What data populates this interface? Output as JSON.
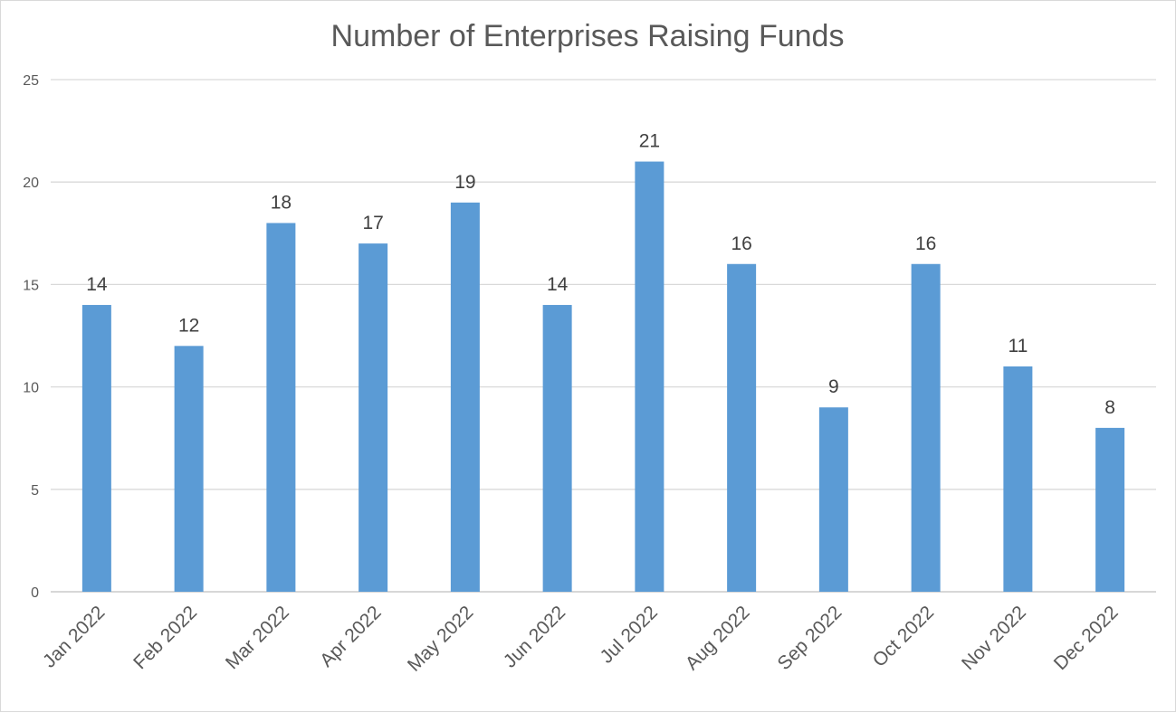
{
  "chart_data": {
    "type": "bar",
    "title": "Number of Enterprises Raising Funds",
    "xlabel": "",
    "ylabel": "",
    "categories": [
      "Jan 2022",
      "Feb 2022",
      "Mar 2022",
      "Apr 2022",
      "May 2022",
      "Jun 2022",
      "Jul 2022",
      "Aug 2022",
      "Sep 2022",
      "Oct 2022",
      "Nov 2022",
      "Dec 2022"
    ],
    "values": [
      14,
      12,
      18,
      17,
      19,
      14,
      21,
      16,
      9,
      16,
      11,
      8
    ],
    "ylim": [
      0,
      25
    ],
    "yticks": [
      0,
      5,
      10,
      15,
      20,
      25
    ],
    "grid": true,
    "data_labels": true,
    "legend": "none",
    "bar_color": "#5b9bd5"
  }
}
